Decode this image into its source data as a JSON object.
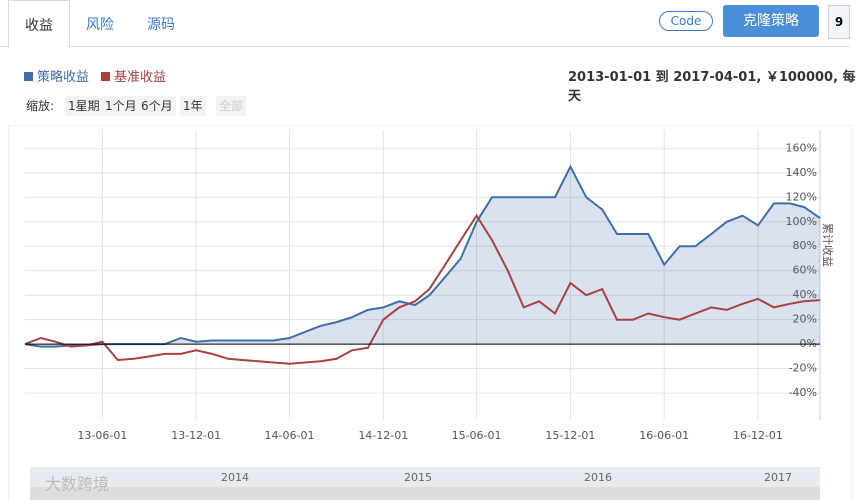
{
  "tabs": [
    "收益",
    "风险",
    "源码"
  ],
  "buttons": {
    "code": "Code",
    "clone": "克隆策略",
    "count": "9"
  },
  "range_text": "2013-01-01 到 2017-04-01, ￥100000, 每天",
  "zoom": {
    "label": "缩放:",
    "options": [
      "1星期",
      "1个月",
      "6个月",
      "1年",
      "全部"
    ]
  },
  "navigator": {
    "labels": [
      "2014",
      "2015",
      "2016",
      "2017"
    ]
  },
  "watermark": "大数跨境",
  "chart_data": {
    "type": "line",
    "y_axis_label": "累计收益",
    "grid": true,
    "x": [
      "2013-01-01",
      "2013-02-01",
      "2013-03-01",
      "2013-04-01",
      "2013-05-01",
      "2013-06-01",
      "2013-07-01",
      "2013-08-01",
      "2013-09-01",
      "2013-10-01",
      "2013-11-01",
      "2013-12-01",
      "2014-01-01",
      "2014-02-01",
      "2014-03-01",
      "2014-04-01",
      "2014-05-01",
      "2014-06-01",
      "2014-07-01",
      "2014-08-01",
      "2014-09-01",
      "2014-10-01",
      "2014-11-01",
      "2014-12-01",
      "2015-01-01",
      "2015-02-01",
      "2015-03-01",
      "2015-04-01",
      "2015-05-01",
      "2015-06-01",
      "2015-07-01",
      "2015-08-01",
      "2015-09-01",
      "2015-10-01",
      "2015-11-01",
      "2015-12-01",
      "2016-01-01",
      "2016-02-01",
      "2016-03-01",
      "2016-04-01",
      "2016-05-01",
      "2016-06-01",
      "2016-07-01",
      "2016-08-01",
      "2016-09-01",
      "2016-10-01",
      "2016-11-01",
      "2016-12-01",
      "2017-01-01",
      "2017-02-01",
      "2017-03-01",
      "2017-04-01"
    ],
    "series": [
      {
        "name": "策略收益",
        "color": "#3f6fa8",
        "area": true,
        "values": [
          0,
          -2,
          -2,
          -1,
          -1,
          0,
          0,
          0,
          0,
          0,
          5,
          2,
          3,
          3,
          3,
          3,
          3,
          5,
          10,
          15,
          18,
          22,
          28,
          30,
          35,
          32,
          40,
          55,
          70,
          100,
          120,
          120,
          120,
          120,
          120,
          145,
          120,
          110,
          90,
          90,
          90,
          65,
          80,
          80,
          90,
          100,
          105,
          97,
          115,
          115,
          112,
          103
        ]
      },
      {
        "name": "基准收益",
        "color": "#a8413f",
        "values": [
          0,
          5,
          2,
          -2,
          -1,
          2,
          -13,
          -12,
          -10,
          -8,
          -8,
          -5,
          -8,
          -12,
          -13,
          -14,
          -15,
          -16,
          -15,
          -14,
          -12,
          -5,
          -3,
          20,
          30,
          35,
          45,
          65,
          85,
          105,
          85,
          60,
          30,
          35,
          25,
          50,
          40,
          45,
          20,
          20,
          25,
          22,
          20,
          25,
          30,
          28,
          33,
          37,
          30,
          33,
          35,
          36
        ]
      }
    ],
    "xlim": [
      "2013-01-01",
      "2017-04-01"
    ],
    "xticks": [
      {
        "value": "2013-06-01",
        "label": "13-06-01"
      },
      {
        "value": "2013-12-01",
        "label": "13-12-01"
      },
      {
        "value": "2014-06-01",
        "label": "14-06-01"
      },
      {
        "value": "2014-12-01",
        "label": "14-12-01"
      },
      {
        "value": "2015-06-01",
        "label": "15-06-01"
      },
      {
        "value": "2015-12-01",
        "label": "15-12-01"
      },
      {
        "value": "2016-06-01",
        "label": "16-06-01"
      },
      {
        "value": "2016-12-01",
        "label": "16-12-01"
      }
    ],
    "ylim": [
      -62,
      175
    ],
    "yticks": [
      {
        "value": -40,
        "label": "-40%"
      },
      {
        "value": -20,
        "label": "-20%"
      },
      {
        "value": 0,
        "label": "0%"
      },
      {
        "value": 20,
        "label": "20%"
      },
      {
        "value": 40,
        "label": "40%"
      },
      {
        "value": 60,
        "label": "60%"
      },
      {
        "value": 80,
        "label": "80%"
      },
      {
        "value": 100,
        "label": "100%"
      },
      {
        "value": 120,
        "label": "120%"
      },
      {
        "value": 140,
        "label": "140%"
      },
      {
        "value": 160,
        "label": "160%"
      }
    ]
  }
}
